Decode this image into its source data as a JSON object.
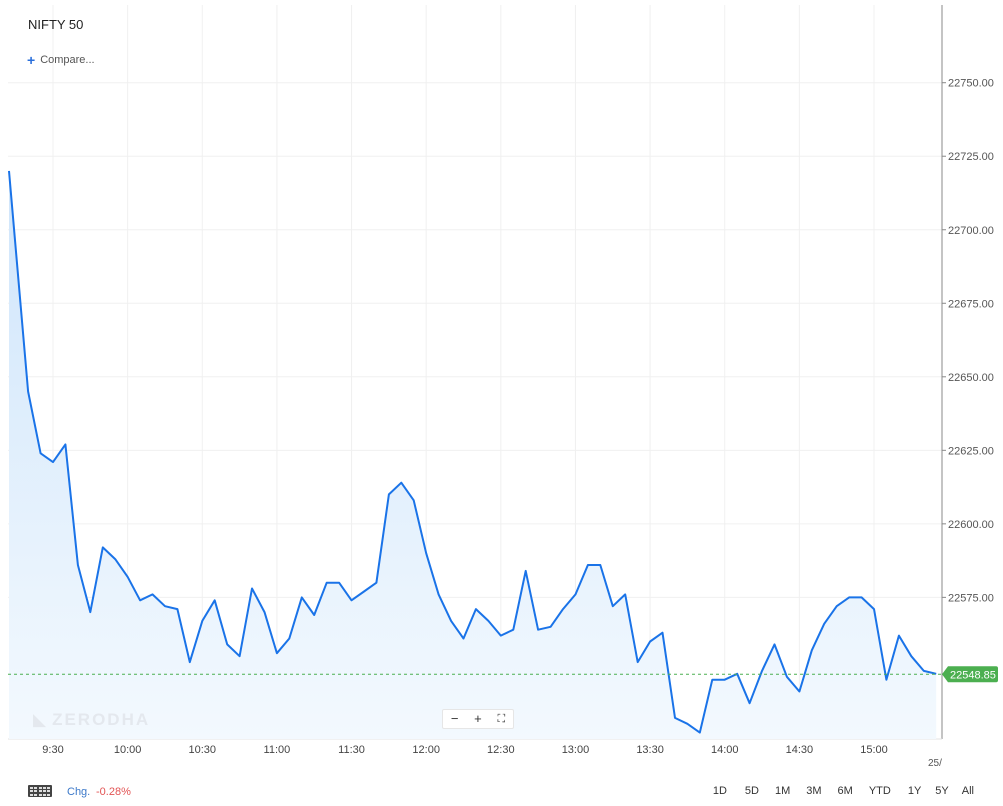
{
  "header": {
    "title": "NIFTY 50",
    "compare_label": "Compare..."
  },
  "watermark": "ZERODHA",
  "zoom": {
    "minus": "−",
    "plus": "+",
    "fullscreen": "⛶"
  },
  "footer": {
    "chg_label": "Chg.",
    "chg_value": "-0.28%",
    "ranges": [
      "1D",
      "5D",
      "1M",
      "3M",
      "6M",
      "YTD",
      "1Y",
      "5Y",
      "All"
    ]
  },
  "date_stub": "25/",
  "colors": {
    "line": "#1a73e8",
    "fill_top": "#cfe5fb",
    "fill_bottom": "#f3f9fe",
    "current_badge": "#4caf50",
    "negative": "#e25454"
  },
  "chart_data": {
    "type": "area",
    "title": "NIFTY 50",
    "xlabel": "",
    "ylabel": "",
    "x_ticks": [
      "9:30",
      "10:00",
      "10:30",
      "11:00",
      "11:30",
      "12:00",
      "12:30",
      "13:00",
      "13:30",
      "14:00",
      "14:30",
      "15:00"
    ],
    "y_ticks": [
      "22750.00",
      "22725.00",
      "22700.00",
      "22675.00",
      "22650.00",
      "22625.00",
      "22600.00",
      "22575.00"
    ],
    "ylim": [
      22535,
      22770
    ],
    "current_value": "22548.85",
    "grid": true,
    "series": [
      {
        "x": [
          "9:15",
          "9:20",
          "9:25",
          "9:30",
          "9:35",
          "9:40",
          "9:45",
          "9:50",
          "9:55",
          "10:00",
          "10:05",
          "10:10",
          "10:15",
          "10:20",
          "10:25",
          "10:30",
          "10:35",
          "10:40",
          "10:45",
          "10:50",
          "10:55",
          "11:00",
          "11:05",
          "11:10",
          "11:15",
          "11:20",
          "11:25",
          "11:30",
          "11:35",
          "11:40",
          "11:45",
          "11:50",
          "11:55",
          "12:00",
          "12:05",
          "12:10",
          "12:15",
          "12:20",
          "12:25",
          "12:30",
          "12:35",
          "12:40",
          "12:45",
          "12:50",
          "12:55",
          "13:00",
          "13:05",
          "13:10",
          "13:15",
          "13:20",
          "13:25",
          "13:30",
          "13:35",
          "13:40",
          "13:45",
          "13:50",
          "13:55",
          "14:00",
          "14:05",
          "14:10",
          "14:15",
          "14:20",
          "14:25",
          "14:30",
          "14:35",
          "14:40",
          "14:45",
          "14:50",
          "14:55",
          "15:00",
          "15:05",
          "15:10",
          "15:15",
          "15:20",
          "15:25"
        ],
        "values": [
          22720,
          22645,
          22624,
          22621,
          22627,
          22586,
          22570,
          22592,
          22588,
          22582,
          22574,
          22576,
          22572,
          22571,
          22553,
          22567,
          22574,
          22559,
          22555,
          22578,
          22570,
          22556,
          22561,
          22575,
          22569,
          22580,
          22580,
          22574,
          22577,
          22580,
          22610,
          22614,
          22608,
          22590,
          22576,
          22567,
          22561,
          22571,
          22567,
          22562,
          22564,
          22584,
          22564,
          22565,
          22571,
          22576,
          22586,
          22586,
          22572,
          22576,
          22553,
          22560,
          22563,
          22534,
          22532,
          22529,
          22547,
          22547,
          22549,
          22539,
          22550,
          22559,
          22548,
          22543,
          22557,
          22566,
          22572,
          22575,
          22575,
          22571,
          22547,
          22562,
          22555,
          22550,
          22549
        ]
      }
    ]
  }
}
